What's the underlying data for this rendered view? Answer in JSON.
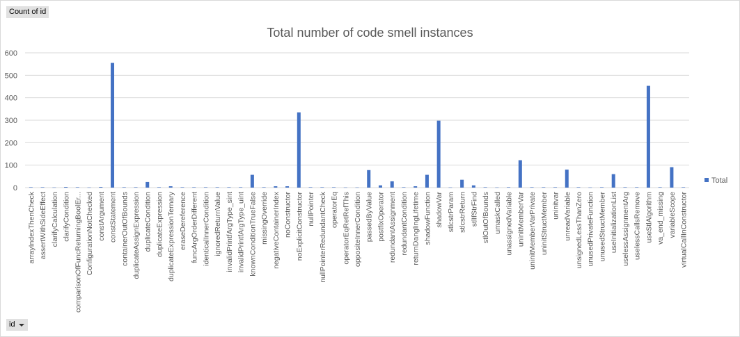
{
  "pivot": {
    "value_field": "Count of id",
    "row_field": "id"
  },
  "colors": {
    "series": "#4472c4",
    "grid": "#d9d9d9",
    "axis_text": "#595959"
  },
  "chart_data": {
    "type": "bar",
    "title": "Total number of code smell instances",
    "xlabel": "",
    "ylabel": "",
    "ylim": [
      0,
      600
    ],
    "yticks": [
      0,
      100,
      200,
      300,
      400,
      500,
      600
    ],
    "grid": true,
    "legend_position": "right",
    "categories": [
      "arrayIndexThenCheck",
      "assertWithSideEffect",
      "clarifyCalculation",
      "clarifyCondition",
      "comparisonOfFuncReturningBoolEr...",
      "ConfigurationNotChecked",
      "constArgument",
      "constStatement",
      "containerOutOfBounds",
      "duplicateAssignExpression",
      "duplicateCondition",
      "duplicateExpression",
      "duplicateExpressionTernary",
      "eraseDereference",
      "funcArgOrderDifferent",
      "identicalInnerCondition",
      "ignoredReturnValue",
      "invalidPrintfArgType_sint",
      "invalidPrintfArgType_uint",
      "knownConditionTrueFalse",
      "missingOverride",
      "negativeContainerIndex",
      "noConstructor",
      "noExplicitConstructor",
      "nullPointer",
      "nullPointerRedundantCheck",
      "operatorEq",
      "operatorEqRetRefThis",
      "oppositeInnerCondition",
      "passedByValue",
      "postfixOperator",
      "redundantAssignment",
      "redundantCondition",
      "returnDanglingLifetime",
      "shadowFunction",
      "shadowVar",
      "stlcstrParam",
      "stlcstrReturn",
      "stlIfStrFind",
      "stlOutOfBounds",
      "umaskCalled",
      "unassignedVariable",
      "uninitMemberVar",
      "uninitMemberVarPrivate",
      "uninitStructMember",
      "uninitvar",
      "unreadVariable",
      "unsignedLessThanZero",
      "unusedPrivateFunction",
      "unusedStructMember",
      "useInitializationList",
      "uselessAssignmentArg",
      "uselessCallsRemove",
      "useStlAlgorithm",
      "va_end_missing",
      "variableScope",
      "virtualCallInConstructor"
    ],
    "series": [
      {
        "name": "Total",
        "values": [
          2,
          2,
          1,
          3,
          2,
          1,
          3,
          555,
          2,
          2,
          25,
          2,
          6,
          2,
          2,
          2,
          2,
          2,
          2,
          57,
          2,
          6,
          6,
          335,
          2,
          2,
          2,
          1,
          1,
          78,
          10,
          28,
          2,
          6,
          57,
          298,
          1,
          35,
          10,
          2,
          1,
          2,
          122,
          2,
          2,
          2,
          80,
          2,
          1,
          2,
          60,
          2,
          2,
          453,
          2,
          91,
          2
        ]
      }
    ]
  }
}
